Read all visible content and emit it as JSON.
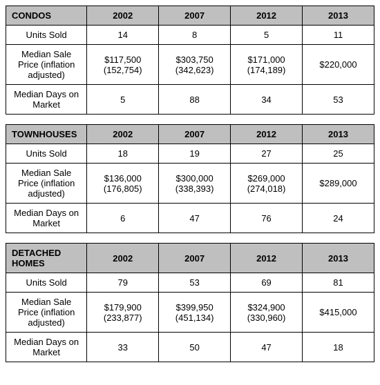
{
  "columns": [
    "2002",
    "2007",
    "2012",
    "2013"
  ],
  "row_labels": {
    "units_sold": "Units Sold",
    "median_price": "Median Sale Price (inflation adjusted)",
    "median_days": "Median Days on Market"
  },
  "tables": [
    {
      "title": "CONDOS",
      "units_sold": [
        "14",
        "8",
        "5",
        "11"
      ],
      "median_price_primary": [
        "$117,500",
        "$303,750",
        "$171,000",
        "$220,000"
      ],
      "median_price_secondary": [
        "(152,754)",
        "(342,623)",
        "(174,189)",
        ""
      ],
      "median_days": [
        "5",
        "88",
        "34",
        "53"
      ]
    },
    {
      "title": "TOWNHOUSES",
      "units_sold": [
        "18",
        "19",
        "27",
        "25"
      ],
      "median_price_primary": [
        "$136,000",
        "$300,000",
        "$269,000",
        "$289,000"
      ],
      "median_price_secondary": [
        "(176,805)",
        "(338,393)",
        "(274,018)",
        ""
      ],
      "median_days": [
        "6",
        "47",
        "76",
        "24"
      ]
    },
    {
      "title": "DETACHED HOMES",
      "units_sold": [
        "79",
        "53",
        "69",
        "81"
      ],
      "median_price_primary": [
        "$179,900",
        "$399,950",
        "$324,900",
        "$415,000"
      ],
      "median_price_secondary": [
        "(233,877)",
        "(451,134)",
        "(330,960)",
        ""
      ],
      "median_days": [
        "33",
        "50",
        "47",
        "18"
      ]
    }
  ]
}
